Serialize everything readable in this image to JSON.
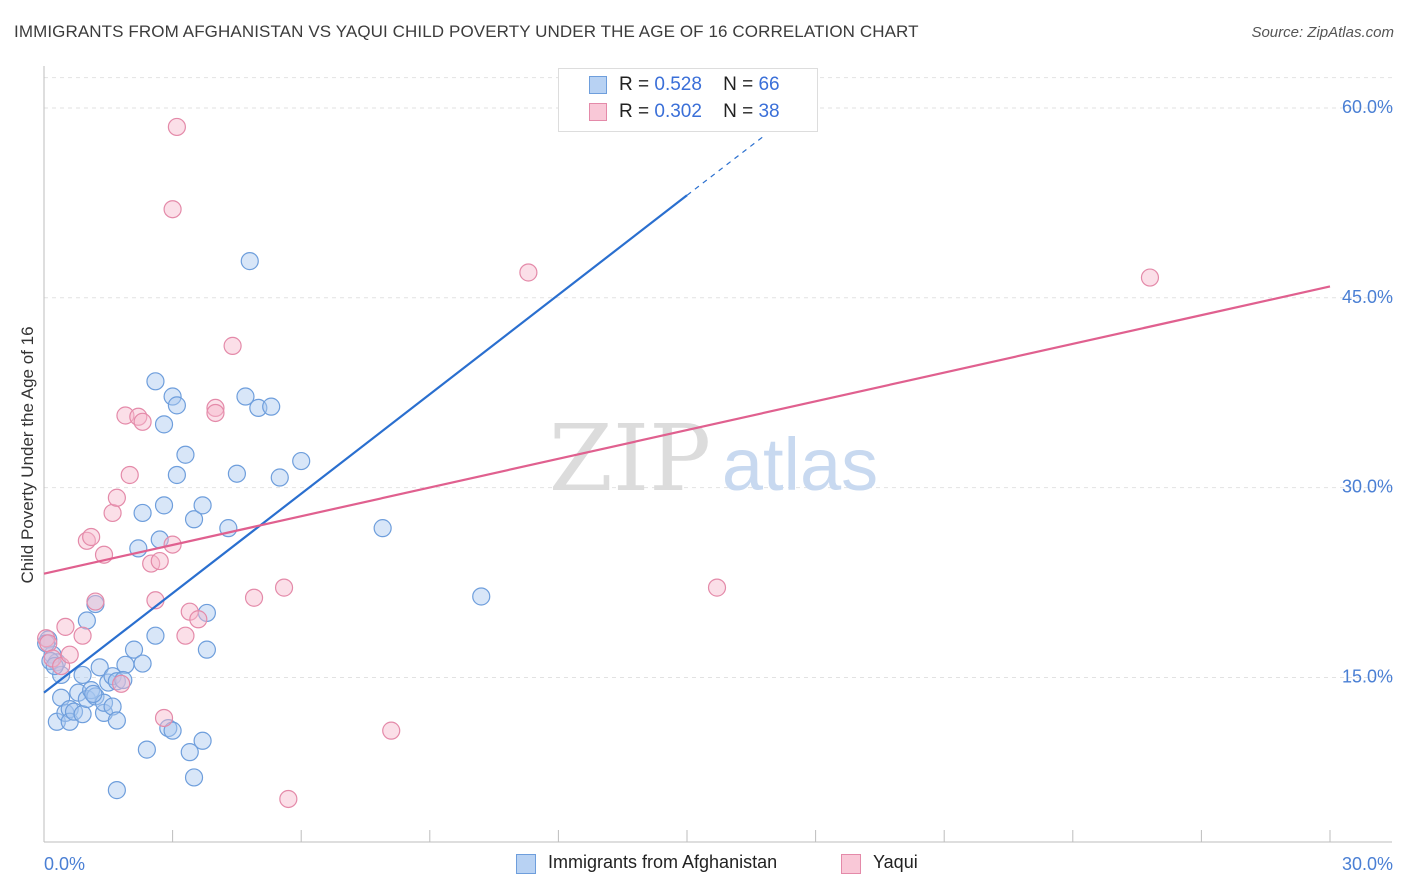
{
  "header": {
    "title": "IMMIGRANTS FROM AFGHANISTAN VS YAQUI CHILD POVERTY UNDER THE AGE OF 16 CORRELATION CHART",
    "source": "Source: ZipAtlas.com"
  },
  "watermark": {
    "zip": "ZIP",
    "atlas": "atlas"
  },
  "legend": {
    "r_label": "R =",
    "n_label": "N =",
    "series": [
      {
        "r": "0.528",
        "n": "66"
      },
      {
        "r": "0.302",
        "n": "38"
      }
    ]
  },
  "bottom_legend": {
    "afghanistan": "Immigrants from Afghanistan",
    "yaqui": "Yaqui"
  },
  "chart_data": {
    "type": "scatter",
    "title": "IMMIGRANTS FROM AFGHANISTAN VS YAQUI CHILD POVERTY UNDER THE AGE OF 16 CORRELATION CHART",
    "xlabel": "",
    "ylabel": "Child Poverty Under the Age of 16",
    "xlim": [
      0,
      30
    ],
    "ylim": [
      2,
      63
    ],
    "x_ticks": [
      {
        "value": 0,
        "label": "0.0%"
      },
      {
        "value": 30,
        "label": "30.0%"
      }
    ],
    "y_ticks": [
      {
        "value": 15,
        "label": "15.0%"
      },
      {
        "value": 30,
        "label": "30.0%"
      },
      {
        "value": 45,
        "label": "45.0%"
      },
      {
        "value": 60,
        "label": "60.0%"
      }
    ],
    "grid": "horizontal dashed",
    "colors": {
      "afghanistan_fill": "#a9c8f0",
      "afghanistan_stroke": "#6e9edc",
      "afghanistan_line": "#2a6fcf",
      "yaqui_fill": "#f6b9cc",
      "yaqui_stroke": "#e48aa9",
      "yaqui_line": "#e0608f",
      "tick_label": "#4a7fd4"
    },
    "series": [
      {
        "name": "Immigrants from Afghanistan",
        "trend": {
          "x0": 0,
          "y0": 13.8,
          "x1": 15,
          "y1": 53.1,
          "dash_to_x": 16.8,
          "dash_to_y": 57.8
        },
        "points": [
          [
            0.1,
            18.0
          ],
          [
            0.2,
            16.8
          ],
          [
            0.3,
            16.2
          ],
          [
            0.3,
            11.5
          ],
          [
            0.4,
            15.2
          ],
          [
            0.4,
            13.4
          ],
          [
            0.5,
            12.2
          ],
          [
            0.6,
            12.5
          ],
          [
            0.6,
            11.5
          ],
          [
            0.7,
            12.3
          ],
          [
            0.8,
            13.8
          ],
          [
            0.9,
            15.2
          ],
          [
            0.9,
            12.1
          ],
          [
            1.0,
            13.3
          ],
          [
            1.0,
            19.5
          ],
          [
            1.1,
            14.0
          ],
          [
            1.2,
            13.5
          ],
          [
            1.2,
            20.8
          ],
          [
            1.3,
            15.8
          ],
          [
            1.4,
            12.2
          ],
          [
            1.4,
            13.0
          ],
          [
            1.5,
            14.6
          ],
          [
            1.6,
            15.1
          ],
          [
            1.6,
            12.7
          ],
          [
            1.7,
            11.6
          ],
          [
            1.7,
            14.7
          ],
          [
            1.7,
            6.1
          ],
          [
            1.9,
            16.0
          ],
          [
            2.1,
            17.2
          ],
          [
            2.2,
            25.2
          ],
          [
            2.3,
            28.0
          ],
          [
            2.3,
            16.1
          ],
          [
            2.4,
            9.3
          ],
          [
            2.6,
            38.4
          ],
          [
            2.6,
            18.3
          ],
          [
            2.7,
            25.9
          ],
          [
            2.8,
            28.6
          ],
          [
            2.8,
            35.0
          ],
          [
            2.9,
            11.0
          ],
          [
            3.0,
            37.2
          ],
          [
            3.0,
            10.8
          ],
          [
            3.1,
            36.5
          ],
          [
            3.1,
            31.0
          ],
          [
            3.3,
            32.6
          ],
          [
            3.4,
            9.1
          ],
          [
            3.5,
            7.1
          ],
          [
            3.5,
            27.5
          ],
          [
            3.7,
            10.0
          ],
          [
            3.7,
            28.6
          ],
          [
            3.8,
            20.1
          ],
          [
            3.8,
            17.2
          ],
          [
            4.3,
            26.8
          ],
          [
            4.5,
            31.1
          ],
          [
            4.7,
            37.2
          ],
          [
            4.8,
            47.9
          ],
          [
            5.0,
            36.3
          ],
          [
            5.3,
            36.4
          ],
          [
            5.5,
            30.8
          ],
          [
            6.0,
            32.1
          ],
          [
            7.9,
            26.8
          ],
          [
            10.2,
            21.4
          ],
          [
            0.05,
            17.7
          ],
          [
            0.15,
            16.3
          ],
          [
            0.25,
            15.9
          ],
          [
            1.15,
            13.7
          ],
          [
            1.85,
            14.8
          ]
        ]
      },
      {
        "name": "Yaqui",
        "trend": {
          "x0": 0,
          "y0": 23.2,
          "x1": 30,
          "y1": 45.9
        },
        "points": [
          [
            0.05,
            18.1
          ],
          [
            0.1,
            17.7
          ],
          [
            0.2,
            16.5
          ],
          [
            0.4,
            15.9
          ],
          [
            0.5,
            19.0
          ],
          [
            0.6,
            16.8
          ],
          [
            0.9,
            18.3
          ],
          [
            1.0,
            25.8
          ],
          [
            1.1,
            26.1
          ],
          [
            1.2,
            21.0
          ],
          [
            1.4,
            24.7
          ],
          [
            1.6,
            28.0
          ],
          [
            1.7,
            29.2
          ],
          [
            1.8,
            14.5
          ],
          [
            1.9,
            35.7
          ],
          [
            2.0,
            31.0
          ],
          [
            2.2,
            35.6
          ],
          [
            2.3,
            35.2
          ],
          [
            2.5,
            24.0
          ],
          [
            2.6,
            21.1
          ],
          [
            2.7,
            24.2
          ],
          [
            2.8,
            11.8
          ],
          [
            3.0,
            52.0
          ],
          [
            3.0,
            25.5
          ],
          [
            3.1,
            58.5
          ],
          [
            3.3,
            18.3
          ],
          [
            3.4,
            20.2
          ],
          [
            3.6,
            19.6
          ],
          [
            4.0,
            36.3
          ],
          [
            4.0,
            35.9
          ],
          [
            4.4,
            41.2
          ],
          [
            4.9,
            21.3
          ],
          [
            5.6,
            22.1
          ],
          [
            5.7,
            5.4
          ],
          [
            8.1,
            10.8
          ],
          [
            11.3,
            47.0
          ],
          [
            15.7,
            22.1
          ],
          [
            25.8,
            46.6
          ]
        ]
      }
    ]
  }
}
